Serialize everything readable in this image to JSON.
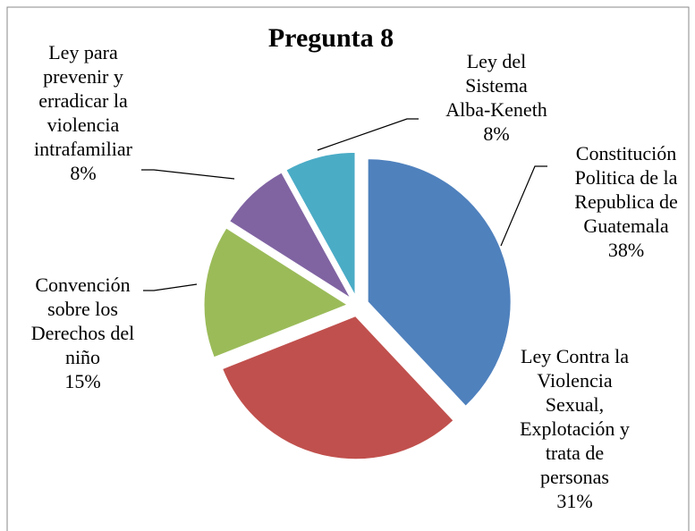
{
  "chart_data": {
    "type": "pie",
    "title": "Pregunta 8",
    "categories": [
      "Constitución Politica de la Republica de Guatemala",
      "Ley Contra la Violencia Sexual, Explotación y trata de personas",
      "Convención sobre los Derechos del niño",
      "Ley para prevenir y erradicar la violencia intrafamiliar",
      "Ley del Sistema Alba-Keneth"
    ],
    "values": [
      38,
      31,
      15,
      8,
      8
    ],
    "value_labels": [
      "38%",
      "31%",
      "15%",
      "8%",
      "8%"
    ],
    "colors": [
      "#4f81bd",
      "#c0504d",
      "#9bbb59",
      "#8064a2",
      "#4bacc6"
    ]
  }
}
